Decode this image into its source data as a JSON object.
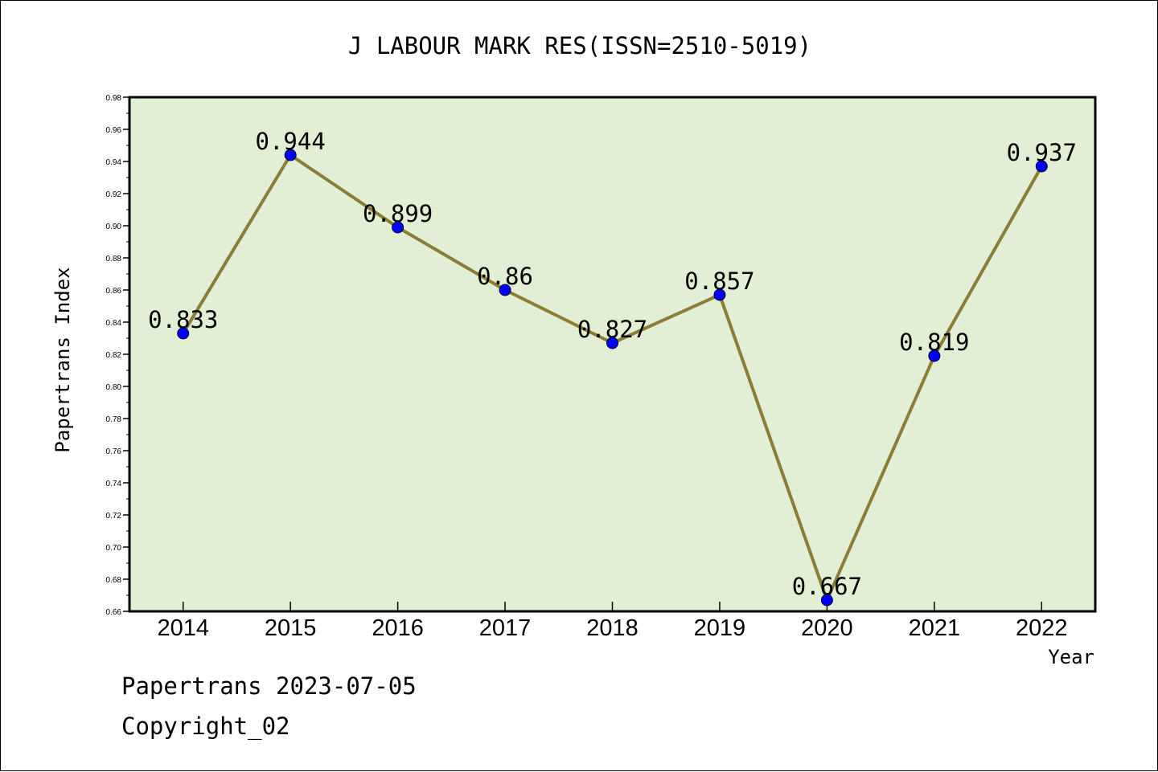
{
  "chart_data": {
    "type": "line",
    "title": "J LABOUR MARK RES(ISSN=2510-5019)",
    "xlabel": "Year",
    "ylabel": "Papertrans Index",
    "categories": [
      "2014",
      "2015",
      "2016",
      "2017",
      "2018",
      "2019",
      "2020",
      "2021",
      "2022"
    ],
    "values": [
      0.833,
      0.944,
      0.899,
      0.86,
      0.827,
      0.857,
      0.667,
      0.819,
      0.937
    ],
    "data_labels": [
      "0.833",
      "0.944",
      "0.899",
      "0.86",
      "0.827",
      "0.857",
      "0.667",
      "0.819",
      "0.937"
    ],
    "ylim": [
      0.66,
      0.98
    ],
    "yticks": [
      "0.66",
      "0.68",
      "0.70",
      "0.72",
      "0.74",
      "0.76",
      "0.78",
      "0.80",
      "0.82",
      "0.84",
      "0.86",
      "0.88",
      "0.90",
      "0.92",
      "0.94",
      "0.96",
      "0.98"
    ],
    "grid": false,
    "legend": "none",
    "colors": {
      "plot_background": "#e2efd5",
      "line": "#8b7d35",
      "marker": "#0000ff"
    }
  },
  "footer": {
    "date_line": "Papertrans 2023-07-05",
    "copyright": "Copyright_02"
  }
}
